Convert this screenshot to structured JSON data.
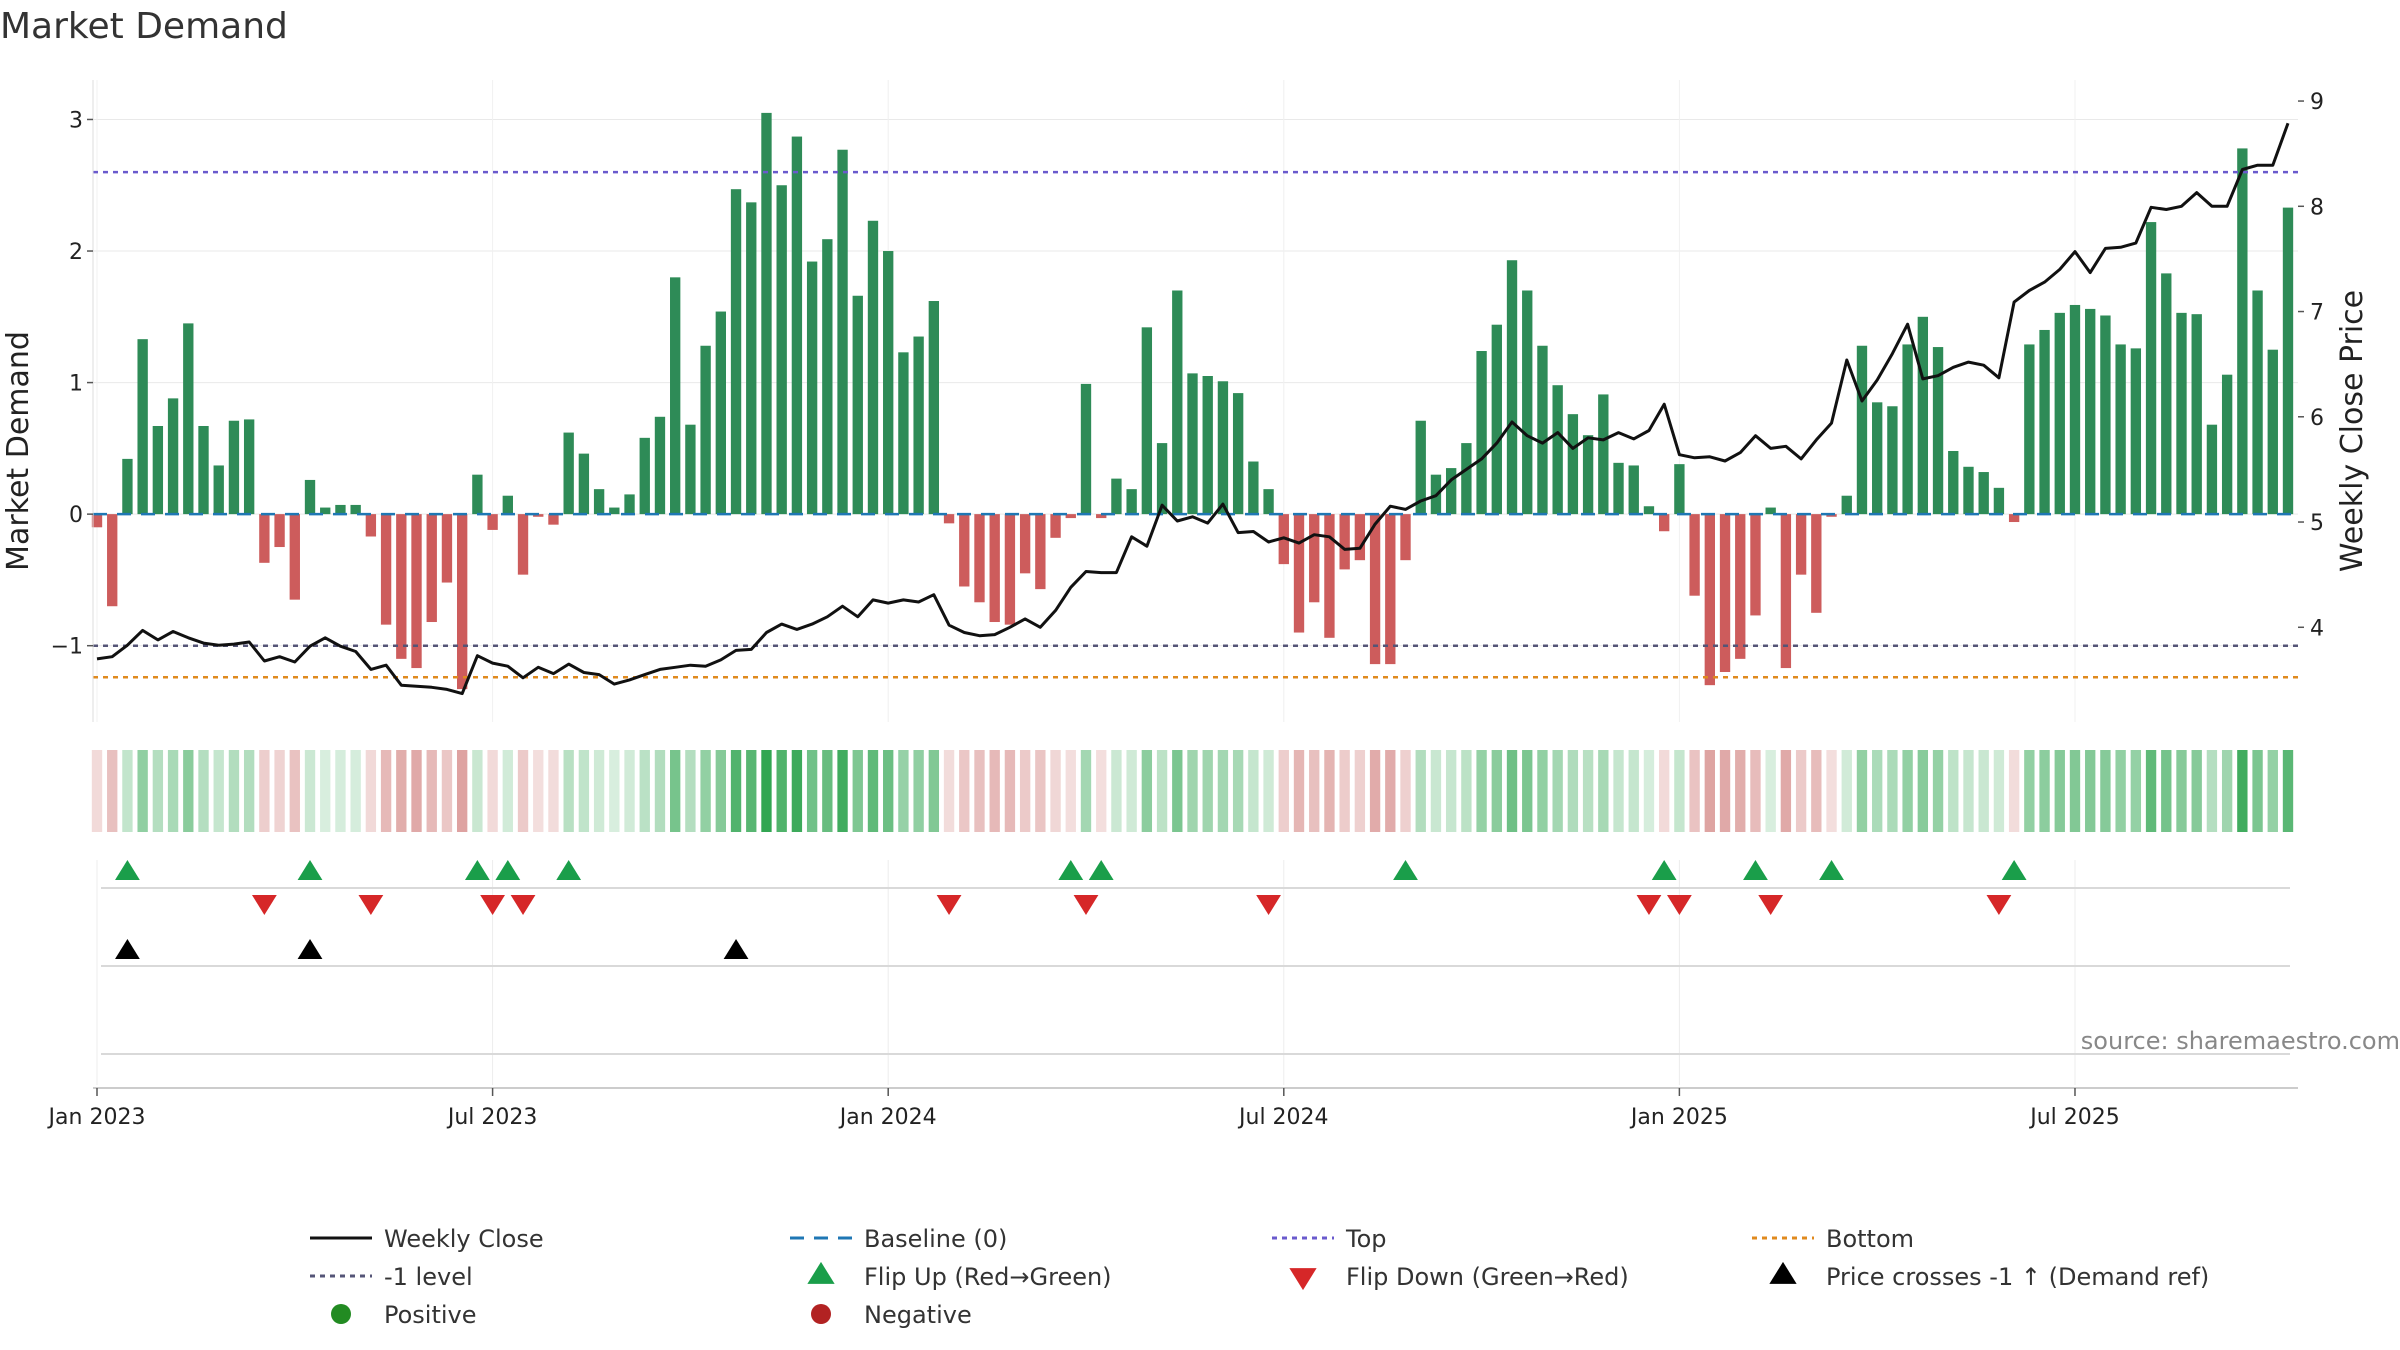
{
  "chart_data": {
    "type": "bar",
    "title": "Market Demand",
    "ylabel": "Market Demand",
    "y2label": "Weekly Close Price",
    "ylim": [
      -1.58,
      3.3
    ],
    "y_ticks": [
      -1,
      0,
      1,
      2,
      3
    ],
    "y_tick_labels": [
      "−1",
      "0",
      "1",
      "2",
      "3"
    ],
    "y2lim": [
      3.1,
      9.2
    ],
    "y2_ticks": [
      4,
      5,
      6,
      7,
      8,
      9
    ],
    "y2_tick_labels": [
      "4",
      "5",
      "6",
      "7",
      "8",
      "9"
    ],
    "x_ticks": [
      {
        "week": 1,
        "label": "Jan 2023"
      },
      {
        "week": 27,
        "label": "Jul 2023"
      },
      {
        "week": 53,
        "label": "Jan 2024"
      },
      {
        "week": 79,
        "label": "Jul 2024"
      },
      {
        "week": 105,
        "label": "Jan 2025"
      },
      {
        "week": 131,
        "label": "Jul 2025"
      }
    ],
    "levels": {
      "top": 2.6,
      "bottom": -1.24,
      "minus_one": -1.0,
      "baseline": 0
    },
    "demand": [
      -0.1,
      -0.7,
      0.42,
      1.33,
      0.67,
      0.88,
      1.45,
      0.67,
      0.37,
      0.71,
      0.72,
      -0.37,
      -0.25,
      -0.65,
      0.26,
      0.05,
      0.07,
      0.07,
      -0.17,
      -0.84,
      -1.1,
      -1.17,
      -0.82,
      -0.52,
      -1.33,
      0.3,
      -0.12,
      0.14,
      -0.46,
      -0.02,
      -0.08,
      0.62,
      0.46,
      0.19,
      0.05,
      0.15,
      0.58,
      0.74,
      1.8,
      0.68,
      1.28,
      1.54,
      2.47,
      2.37,
      3.05,
      2.5,
      2.87,
      1.92,
      2.09,
      2.77,
      1.66,
      2.23,
      2.0,
      1.23,
      1.35,
      1.62,
      -0.07,
      -0.55,
      -0.67,
      -0.82,
      -0.84,
      -0.45,
      -0.57,
      -0.18,
      -0.03,
      0.99,
      -0.03,
      0.27,
      0.19,
      1.42,
      0.54,
      1.7,
      1.07,
      1.05,
      1.01,
      0.92,
      0.4,
      0.19,
      -0.38,
      -0.9,
      -0.67,
      -0.94,
      -0.42,
      -0.35,
      -1.14,
      -1.14,
      -0.35,
      0.71,
      0.3,
      0.35,
      0.54,
      1.24,
      1.44,
      1.93,
      1.7,
      1.28,
      0.98,
      0.76,
      0.6,
      0.91,
      0.39,
      0.37,
      0.06,
      -0.13,
      0.38,
      -0.62,
      -1.3,
      -1.2,
      -1.1,
      -0.77,
      0.05,
      -1.17,
      -0.46,
      -0.75,
      -0.02,
      0.14,
      1.28,
      0.85,
      0.82,
      1.29,
      1.5,
      1.27,
      0.48,
      0.36,
      0.32,
      0.2,
      -0.06,
      1.29,
      1.4,
      1.53,
      1.59,
      1.56,
      1.51,
      1.29,
      1.26,
      2.22,
      1.83,
      1.53,
      1.52,
      0.68,
      1.06,
      2.78,
      1.7,
      1.25,
      2.33
    ],
    "series": [
      {
        "name": "Weekly Close",
        "values": [
          3.7,
          3.72,
          3.83,
          3.97,
          3.88,
          3.96,
          3.9,
          3.85,
          3.83,
          3.84,
          3.86,
          3.68,
          3.72,
          3.67,
          3.82,
          3.9,
          3.82,
          3.77,
          3.6,
          3.64,
          3.45,
          3.44,
          3.43,
          3.41,
          3.37,
          3.73,
          3.66,
          3.63,
          3.52,
          3.62,
          3.56,
          3.65,
          3.57,
          3.55,
          3.46,
          3.5,
          3.55,
          3.6,
          3.62,
          3.64,
          3.63,
          3.69,
          3.78,
          3.79,
          3.95,
          4.03,
          3.98,
          4.03,
          4.1,
          4.2,
          4.1,
          4.26,
          4.23,
          4.26,
          4.24,
          4.31,
          4.02,
          3.95,
          3.92,
          3.93,
          4.0,
          4.08,
          4.0,
          4.16,
          4.38,
          4.53,
          4.52,
          4.52,
          4.86,
          4.77,
          5.16,
          5.01,
          5.05,
          4.99,
          5.17,
          4.9,
          4.91,
          4.81,
          4.85,
          4.8,
          4.88,
          4.86,
          4.74,
          4.75,
          4.98,
          5.15,
          5.12,
          5.2,
          5.25,
          5.4,
          5.5,
          5.6,
          5.75,
          5.95,
          5.82,
          5.75,
          5.85,
          5.7,
          5.8,
          5.78,
          5.85,
          5.79,
          5.87,
          6.12,
          5.64,
          5.61,
          5.62,
          5.58,
          5.66,
          5.82,
          5.7,
          5.72,
          5.6,
          5.78,
          5.94,
          6.54,
          6.15,
          6.35,
          6.6,
          6.88,
          6.36,
          6.39,
          6.47,
          6.52,
          6.49,
          6.37,
          7.09,
          7.2,
          7.28,
          7.4,
          7.57,
          7.37,
          7.6,
          7.61,
          7.65,
          7.99,
          7.97,
          8.0,
          8.13,
          8.0,
          8.0,
          8.35,
          8.39,
          8.39,
          8.79
        ]
      }
    ],
    "flip_up_weeks": [
      3,
      15,
      26,
      28,
      32,
      65,
      67,
      87,
      104,
      110,
      115,
      127
    ],
    "flip_down_weeks": [
      12,
      19,
      27,
      29,
      57,
      66,
      78,
      103,
      105,
      111,
      126
    ],
    "price_cross_weeks": [
      3,
      15,
      43
    ],
    "heatstrip_label": "",
    "legend": [
      {
        "label": "Weekly Close",
        "kind": "line"
      },
      {
        "label": "Baseline (0)",
        "kind": "dashed-blue"
      },
      {
        "label": "Top",
        "kind": "dotted-purple"
      },
      {
        "label": "Bottom",
        "kind": "dotted-orange"
      },
      {
        "label": "-1 level",
        "kind": "dotted-gray"
      },
      {
        "label": "Flip Up (Red→Green)",
        "kind": "tri-up-green"
      },
      {
        "label": "Flip Down (Green→Red)",
        "kind": "tri-down-red"
      },
      {
        "label": "Price crosses -1 ↑ (Demand ref)",
        "kind": "tri-up-black"
      },
      {
        "label": "Positive",
        "kind": "dot-green"
      },
      {
        "label": "Negative",
        "kind": "dot-red"
      }
    ],
    "source": "source: sharemaestro.com"
  },
  "colors": {
    "positive": "#2e8b57",
    "negative": "#cd5c5c",
    "top_line": "#6a5acd",
    "bottom_line": "#e08a1e",
    "minus_one_line": "#555577",
    "baseline": "#1f77b4",
    "flip_up": "#1a9e4a",
    "flip_down": "#d62728",
    "cross": "#000000",
    "positive_dot": "#228b22",
    "negative_dot": "#b22222"
  }
}
